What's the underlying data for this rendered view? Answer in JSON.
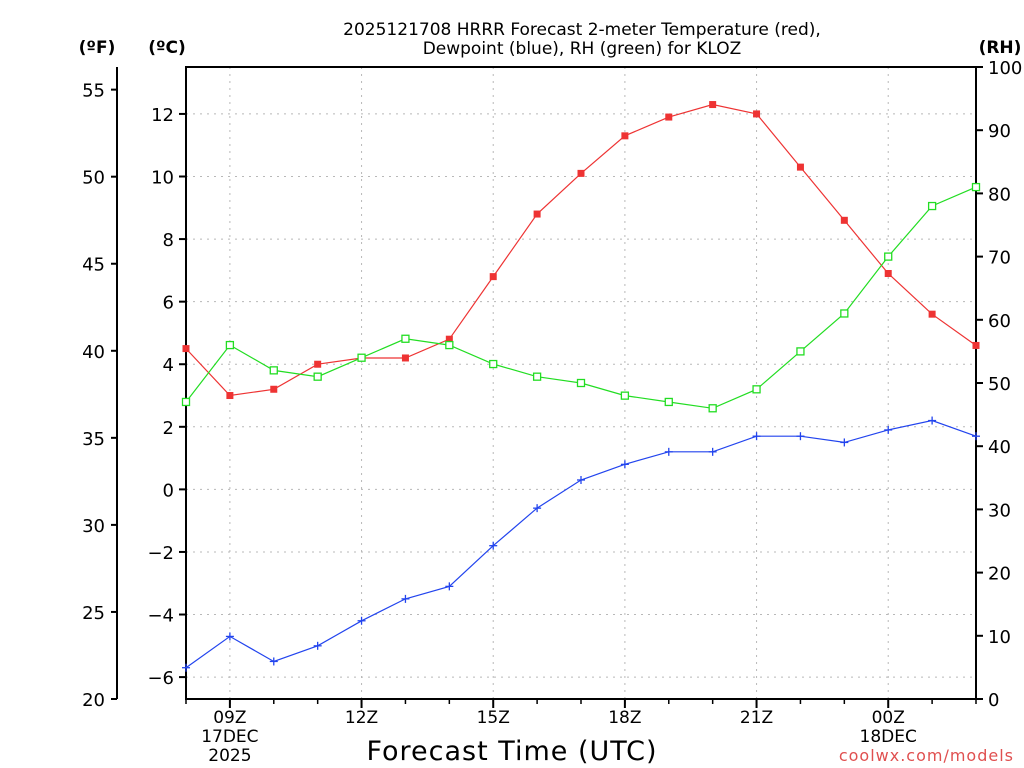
{
  "chart_data": {
    "type": "line",
    "title_line1": "2025121708 HRRR Forecast 2-meter Temperature (red),",
    "title_line2": "Dewpoint (blue), RH (green) for KLOZ",
    "xlabel": "Forecast Time (UTC)",
    "watermark": "coolwx.com/models",
    "axis_labels": {
      "fahrenheit": "(ºF)",
      "celsius": "(ºC)",
      "rh": "(RH)"
    },
    "celsius_range": [
      -6.7,
      13.5
    ],
    "fahrenheit_range": [
      20,
      56.3
    ],
    "rh_range": [
      0,
      100
    ],
    "fahrenheit_ticks": [
      "20",
      "25",
      "30",
      "35",
      "40",
      "45",
      "50",
      "55"
    ],
    "celsius_ticks": [
      "−6",
      "−4",
      "−2",
      "0",
      "2",
      "4",
      "6",
      "8",
      "10",
      "12"
    ],
    "rh_ticks": [
      "0",
      "10",
      "20",
      "30",
      "40",
      "50",
      "60",
      "70",
      "80",
      "90",
      "100"
    ],
    "x_hours": [
      8,
      9,
      10,
      11,
      12,
      13,
      14,
      15,
      16,
      17,
      18,
      19,
      20,
      21,
      22,
      23,
      24,
      25,
      26
    ],
    "x_ticks": [
      {
        "hour": 9,
        "label": "09Z",
        "date": "17DEC",
        "year": "2025"
      },
      {
        "hour": 12,
        "label": "12Z"
      },
      {
        "hour": 15,
        "label": "15Z"
      },
      {
        "hour": 18,
        "label": "18Z"
      },
      {
        "hour": 21,
        "label": "21Z"
      },
      {
        "hour": 24,
        "label": "00Z",
        "date": "18DEC"
      }
    ],
    "series": [
      {
        "name": "Temperature",
        "axis": "celsius",
        "color": "#ee3333",
        "marker": "filled-square",
        "values": [
          4.5,
          3.0,
          3.2,
          4.0,
          4.2,
          4.2,
          4.8,
          6.8,
          8.8,
          10.1,
          11.3,
          11.9,
          12.3,
          12.0,
          10.3,
          8.6,
          6.9,
          5.6,
          4.6
        ]
      },
      {
        "name": "Dewpoint",
        "axis": "celsius",
        "color": "#2244ee",
        "marker": "plus",
        "values": [
          -5.7,
          -4.7,
          -5.5,
          -5.0,
          -4.2,
          -3.5,
          -3.1,
          -1.8,
          -0.6,
          0.3,
          0.8,
          1.2,
          1.2,
          1.7,
          1.7,
          1.5,
          1.9,
          2.2,
          1.7
        ]
      },
      {
        "name": "Relative Humidity",
        "axis": "rh",
        "color": "#22dd22",
        "marker": "open-square",
        "values": [
          47,
          56,
          52,
          51,
          54,
          57,
          56,
          53,
          51,
          50,
          48,
          47,
          46,
          49,
          55,
          61,
          70,
          78,
          81
        ]
      }
    ]
  }
}
